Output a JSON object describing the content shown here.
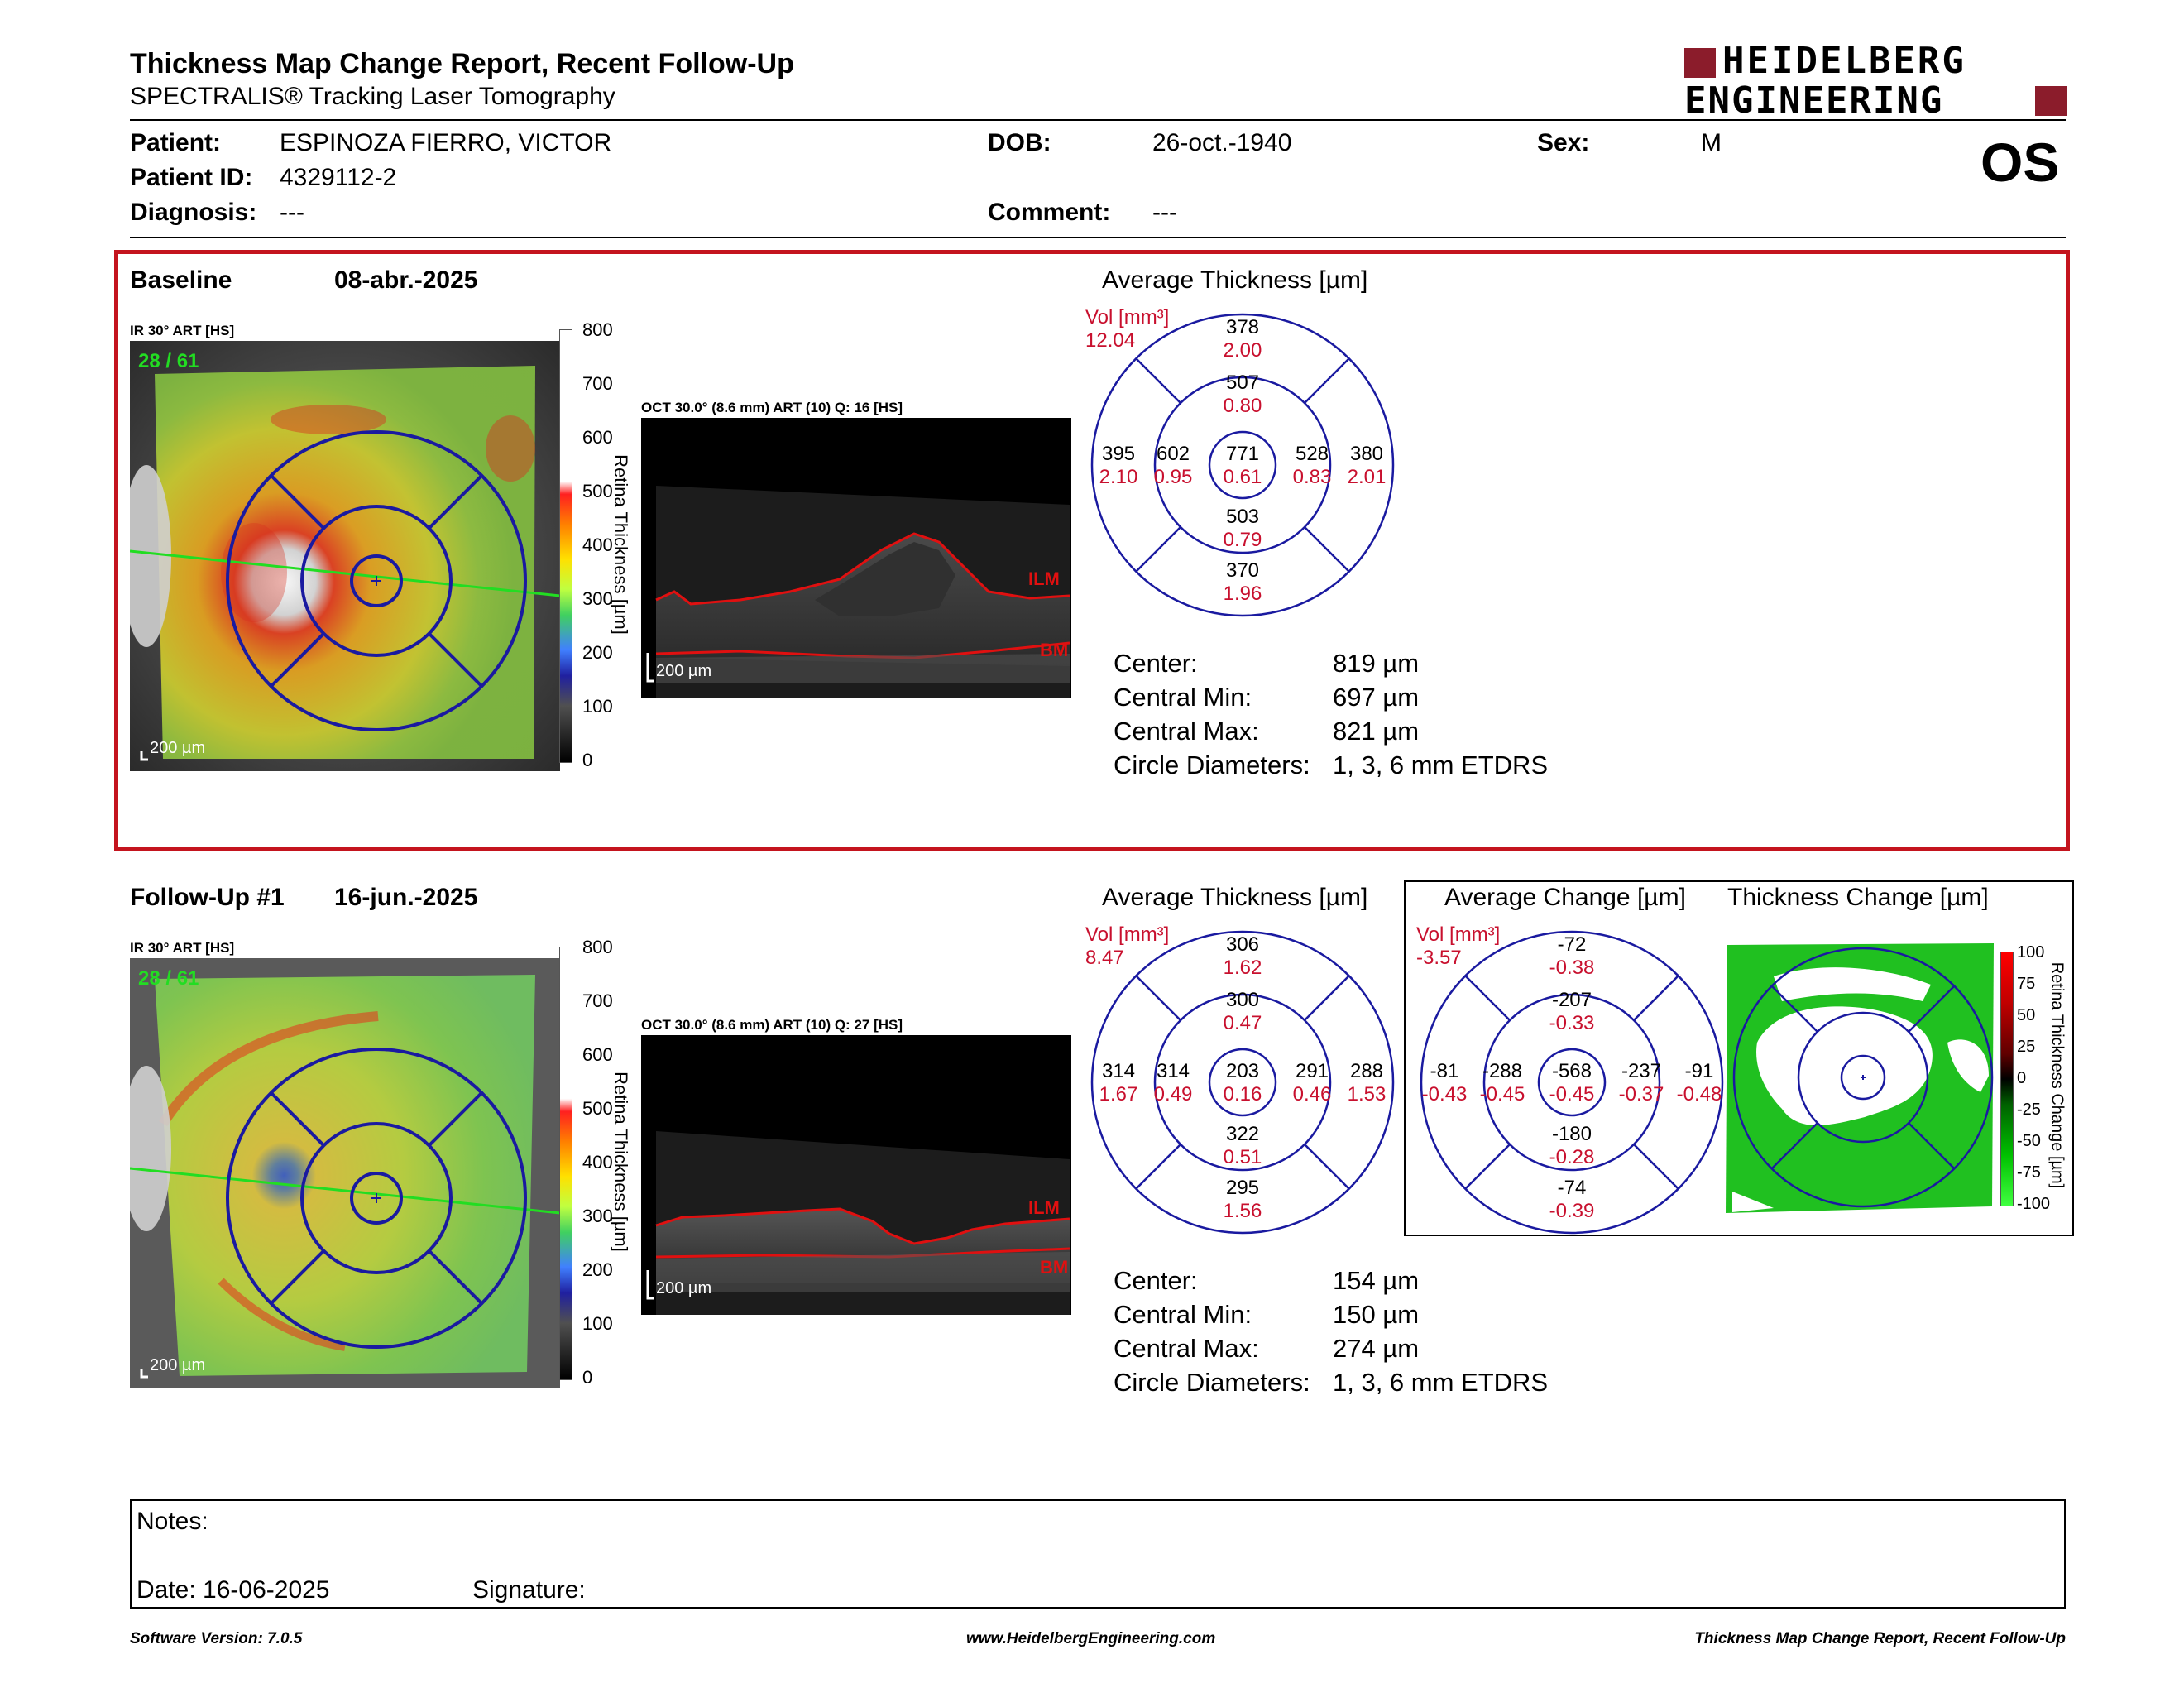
{
  "header": {
    "title": "Thickness Map Change Report, Recent Follow-Up",
    "subtitle": "SPECTRALIS® Tracking Laser Tomography",
    "logo_line1": "HEIDELBERG",
    "logo_line2": "ENGINEERING",
    "eye": "OS"
  },
  "patient": {
    "patient_label": "Patient:",
    "patient_value": "ESPINOZA FIERRO, VICTOR",
    "id_label": "Patient ID:",
    "id_value": "4329112-2",
    "diagnosis_label": "Diagnosis:",
    "diagnosis_value": "---",
    "dob_label": "DOB:",
    "dob_value": "26-oct.-1940",
    "comment_label": "Comment:",
    "comment_value": "---",
    "sex_label": "Sex:",
    "sex_value": "M"
  },
  "baseline": {
    "label": "Baseline",
    "date": "08-abr.-2025",
    "ir_label": "IR 30° ART [HS]",
    "ir_counter": "28 / 61",
    "scale": "200 µm",
    "colorbar_ticks": [
      "800",
      "700",
      "600",
      "500",
      "400",
      "300",
      "200",
      "100",
      "0"
    ],
    "colorbar_title": "Retina Thickness [µm]",
    "oct_label": "OCT 30.0° (8.6 mm) ART (10) Q: 16 [HS]",
    "ilm": "ILM",
    "bm": "BM",
    "avg_title": "Average Thickness [µm]",
    "vol_label": "Vol [mm³]",
    "vol_total": "12.04",
    "sectors": {
      "outer_sup": [
        "378",
        "2.00"
      ],
      "inner_sup": [
        "507",
        "0.80"
      ],
      "outer_temp": [
        "395",
        "2.10"
      ],
      "inner_temp": [
        "602",
        "0.95"
      ],
      "center": [
        "771",
        "0.61"
      ],
      "inner_nasal": [
        "528",
        "0.83"
      ],
      "outer_nasal": [
        "380",
        "2.01"
      ],
      "inner_inf": [
        "503",
        "0.79"
      ],
      "outer_inf": [
        "370",
        "1.96"
      ]
    },
    "center_label": "Center:",
    "center_value": "819 µm",
    "min_label": "Central Min:",
    "min_value": "697 µm",
    "max_label": "Central Max:",
    "max_value": "821 µm",
    "diam_label": "Circle Diameters:",
    "diam_value": "1, 3, 6 mm ETDRS"
  },
  "followup": {
    "label": "Follow-Up #1",
    "date": "16-jun.-2025",
    "ir_label": "IR 30° ART [HS]",
    "ir_counter": "28 / 61",
    "scale": "200 µm",
    "colorbar_ticks": [
      "800",
      "700",
      "600",
      "500",
      "400",
      "300",
      "200",
      "100",
      "0"
    ],
    "colorbar_title": "Retina Thickness [µm]",
    "oct_label": "OCT 30.0° (8.6 mm) ART (10) Q: 27 [HS]",
    "ilm": "ILM",
    "bm": "BM",
    "avg_title": "Average Thickness [µm]",
    "vol_label": "Vol [mm³]",
    "vol_total": "8.47",
    "sectors": {
      "outer_sup": [
        "306",
        "1.62"
      ],
      "inner_sup": [
        "300",
        "0.47"
      ],
      "outer_temp": [
        "314",
        "1.67"
      ],
      "inner_temp": [
        "314",
        "0.49"
      ],
      "center": [
        "203",
        "0.16"
      ],
      "inner_nasal": [
        "291",
        "0.46"
      ],
      "outer_nasal": [
        "288",
        "1.53"
      ],
      "inner_inf": [
        "322",
        "0.51"
      ],
      "outer_inf": [
        "295",
        "1.56"
      ]
    },
    "change_title": "Average Change [µm]",
    "change_vol_label": "Vol [mm³]",
    "change_vol_total": "-3.57",
    "change_sectors": {
      "outer_sup": [
        "-72",
        "-0.38"
      ],
      "inner_sup": [
        "-207",
        "-0.33"
      ],
      "outer_temp": [
        "-81",
        "-0.43"
      ],
      "inner_temp": [
        "-288",
        "-0.45"
      ],
      "center": [
        "-568",
        "-0.45"
      ],
      "inner_nasal": [
        "-237",
        "-0.37"
      ],
      "outer_nasal": [
        "-91",
        "-0.48"
      ],
      "inner_inf": [
        "-180",
        "-0.28"
      ],
      "outer_inf": [
        "-74",
        "-0.39"
      ]
    },
    "tchange_title": "Thickness Change [µm]",
    "tchange_ticks": [
      "100",
      "75",
      "50",
      "25",
      "0",
      "-25",
      "-50",
      "-75",
      "-100"
    ],
    "tchange_bar_title": "Retina Thickness Change [µm]",
    "center_label": "Center:",
    "center_value": "154 µm",
    "min_label": "Central Min:",
    "min_value": "150 µm",
    "max_label": "Central Max:",
    "max_value": "274 µm",
    "diam_label": "Circle Diameters:",
    "diam_value": "1, 3, 6 mm ETDRS"
  },
  "notes": {
    "notes_label": "Notes:",
    "date_label": "Date: 16-06-2025",
    "signature_label": "Signature:"
  },
  "footer": {
    "left": "Software Version: 7.0.5",
    "center": "www.HeidelbergEngineering.com",
    "right": "Thickness Map Change Report, Recent Follow-Up"
  },
  "colors": {
    "accent_red": "#c8102e",
    "etdrs_blue": "#1a1aa0",
    "box_red": "#c4141e"
  }
}
